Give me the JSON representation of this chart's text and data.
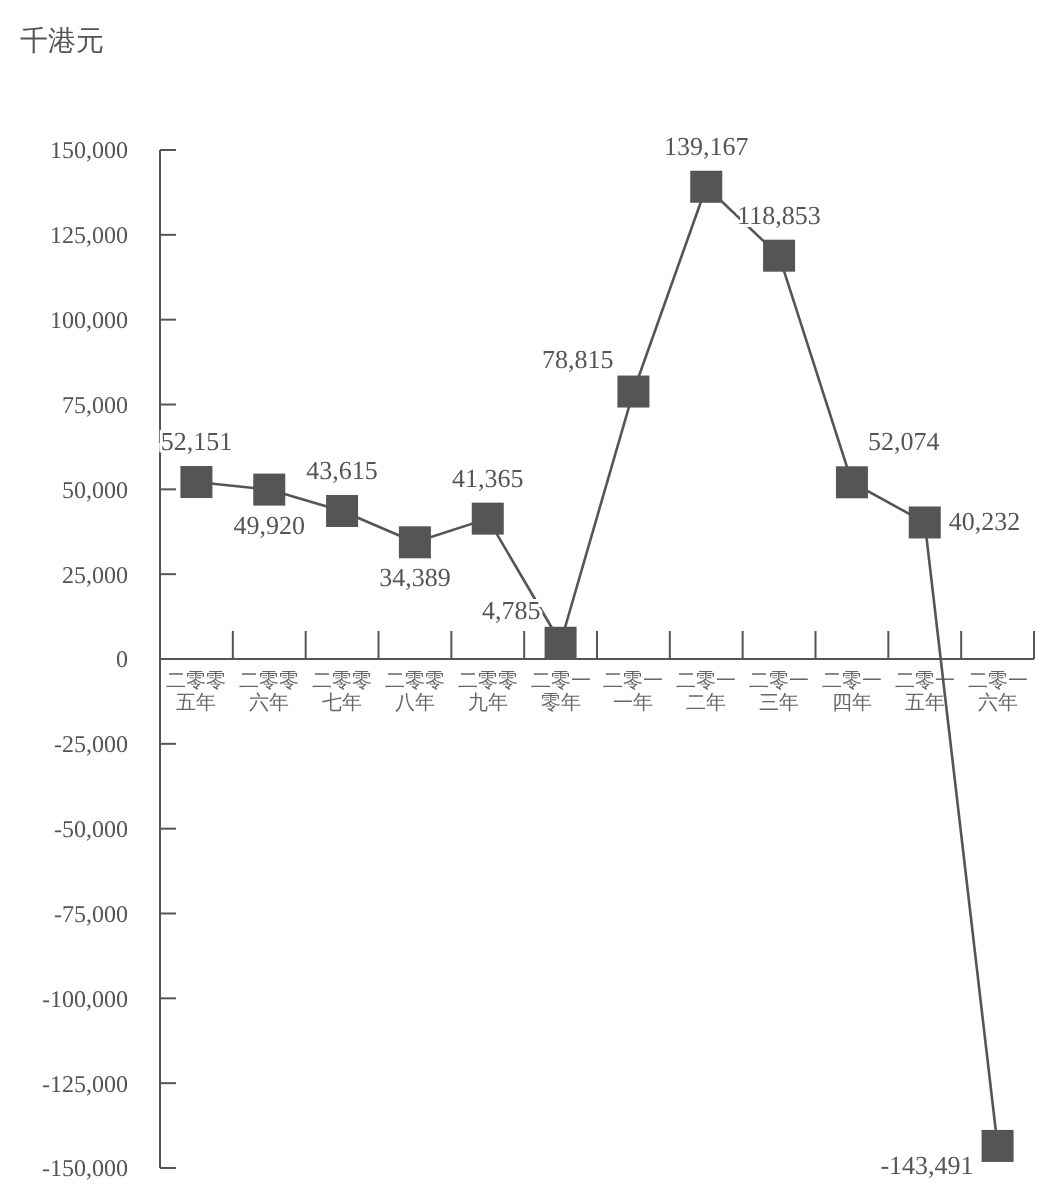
{
  "chart_data": {
    "type": "line",
    "ylabel": "千港元",
    "categories": [
      "二零零五年",
      "二零零六年",
      "二零零七年",
      "二零零八年",
      "二零零九年",
      "二零一零年",
      "二零一一年",
      "二零一二年",
      "二零一三年",
      "二零一四年",
      "二零一五年",
      "二零一六年"
    ],
    "series": [
      {
        "color": "#555555",
        "values": [
          52151,
          49920,
          43615,
          34389,
          41365,
          4785,
          78815,
          139167,
          118853,
          52074,
          40232,
          -143491
        ],
        "value_labels": [
          "52,151",
          "49,920",
          "43,615",
          "34,389",
          "41,365",
          "4,785",
          "78,815",
          "139,167",
          "118,853",
          "52,074",
          "40,232",
          "-143,491"
        ]
      }
    ],
    "ylim": [
      -150000,
      150000
    ],
    "yticks": [
      {
        "value": 150000,
        "label": "150,000"
      },
      {
        "value": 125000,
        "label": "125,000"
      },
      {
        "value": 100000,
        "label": "100,000"
      },
      {
        "value": 75000,
        "label": "75,000"
      },
      {
        "value": 50000,
        "label": "50,000"
      },
      {
        "value": 25000,
        "label": "25,000"
      },
      0,
      {
        "value": -25000,
        "label": "-25,000"
      },
      {
        "value": -50000,
        "label": "-50,000"
      },
      {
        "value": -75000,
        "label": "-75,000"
      },
      {
        "value": -100000,
        "label": "-100,000"
      },
      {
        "value": -125000,
        "label": "-125,000"
      },
      {
        "value": -150000,
        "label": "-150,000"
      }
    ],
    "marker": "square"
  }
}
